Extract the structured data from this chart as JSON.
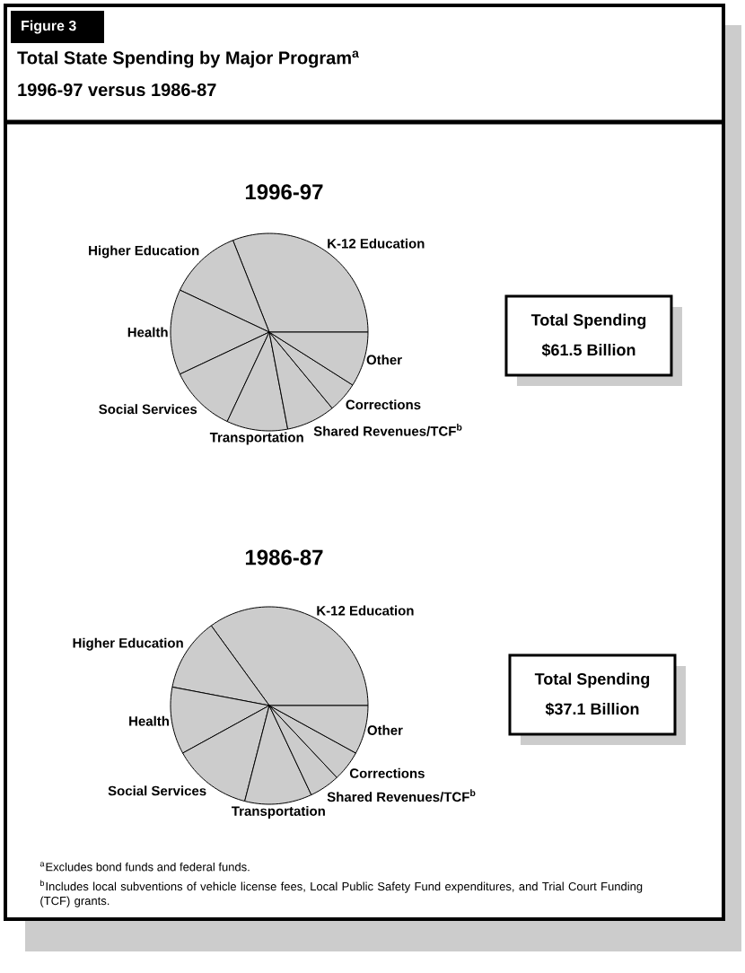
{
  "chart_data": [
    {
      "type": "pie",
      "title": "1996-97",
      "categories": [
        "K-12 Education",
        "Higher Education",
        "Health",
        "Social Services",
        "Transportation",
        "Shared Revenues/TCF$^{b}$",
        "Corrections",
        "Other"
      ],
      "values": [
        31,
        12,
        14,
        11,
        10,
        8,
        5,
        9
      ],
      "colors": [
        "#cccccc",
        "#cccccc",
        "#cccccc",
        "#cccccc",
        "#cccccc",
        "#cccccc",
        "#cccccc",
        "#cccccc"
      ],
      "annotations": [
        "Figure 3",
        "Total State Spending by Major Program$^{a}$",
        "1996-97 versus 1986-87",
        "Total Spending",
        "$61.5 Billion"
      ]
    },
    {
      "type": "pie",
      "title": "1986-87",
      "categories": [
        "K-12 Education",
        "Higher Education",
        "Health",
        "Social Services",
        "Transportation",
        "Shared Revenues/TCF$^{b}$",
        "Corrections",
        "Other"
      ],
      "values": [
        35,
        12,
        11,
        13,
        11,
        5,
        5,
        8
      ],
      "colors": [
        "#cccccc",
        "#cccccc",
        "#cccccc",
        "#cccccc",
        "#cccccc",
        "#cccccc",
        "#cccccc",
        "#cccccc"
      ],
      "annotations": [
        "Total Spending",
        "$37.1 Billion",
        "$^{a}$Excludes bond funds and federal funds.",
        "$^{b}$Includes local subventions of vehicle license fees, Local Public Safety Fund expenditures, and Trial Court Funding (TCF) grants."
      ]
    }
  ]
}
